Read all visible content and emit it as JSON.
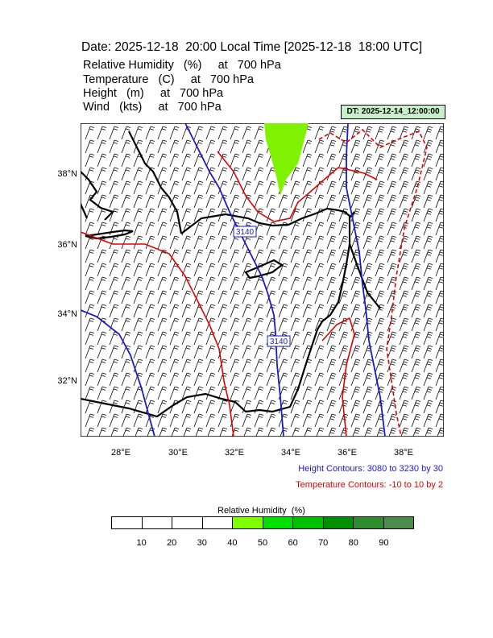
{
  "header": {
    "title": "Date: 2025-12-18  20:00 Local Time [2025-12-18  18:00 UTC]",
    "lines": [
      "Relative Humidity   (%)     at   700 hPa",
      "Temperature   (C)     at   700 hPa",
      "Height   (m)     at   700 hPa",
      "Wind   (kts)     at   700 hPa"
    ],
    "dt_badge": "DT: 2025-12-14_12:00:00"
  },
  "map": {
    "lat_labels": [
      "38°N",
      "36°N",
      "34°N",
      "32°N"
    ],
    "lon_labels": [
      "28°E",
      "30°E",
      "32°E",
      "34°E",
      "36°E",
      "38°E"
    ],
    "height_contour_labels": [
      "3140",
      "3140"
    ],
    "colors": {
      "coastline": "#000000",
      "height_contour": "#1a1acc",
      "temperature_contour": "#e00000",
      "humidity_fill": "#7ef200",
      "wind_barb": "#000000"
    }
  },
  "notes": {
    "height_contours": "Height Contours: 3080 to 3230 by 30",
    "temperature_contours": "Temperature Contours: -10 to 10 by 2"
  },
  "legend": {
    "title": "Relative Humidity  (%)",
    "labels": [
      "10",
      "20",
      "30",
      "40",
      "50",
      "60",
      "70",
      "80",
      "90"
    ],
    "colors": [
      "#ffffff",
      "#ffffff",
      "#ffffff",
      "#ffffff",
      "#80ff00",
      "#00e000",
      "#00c000",
      "#009000",
      "#2e8b2e",
      "#4c8c4c"
    ]
  }
}
